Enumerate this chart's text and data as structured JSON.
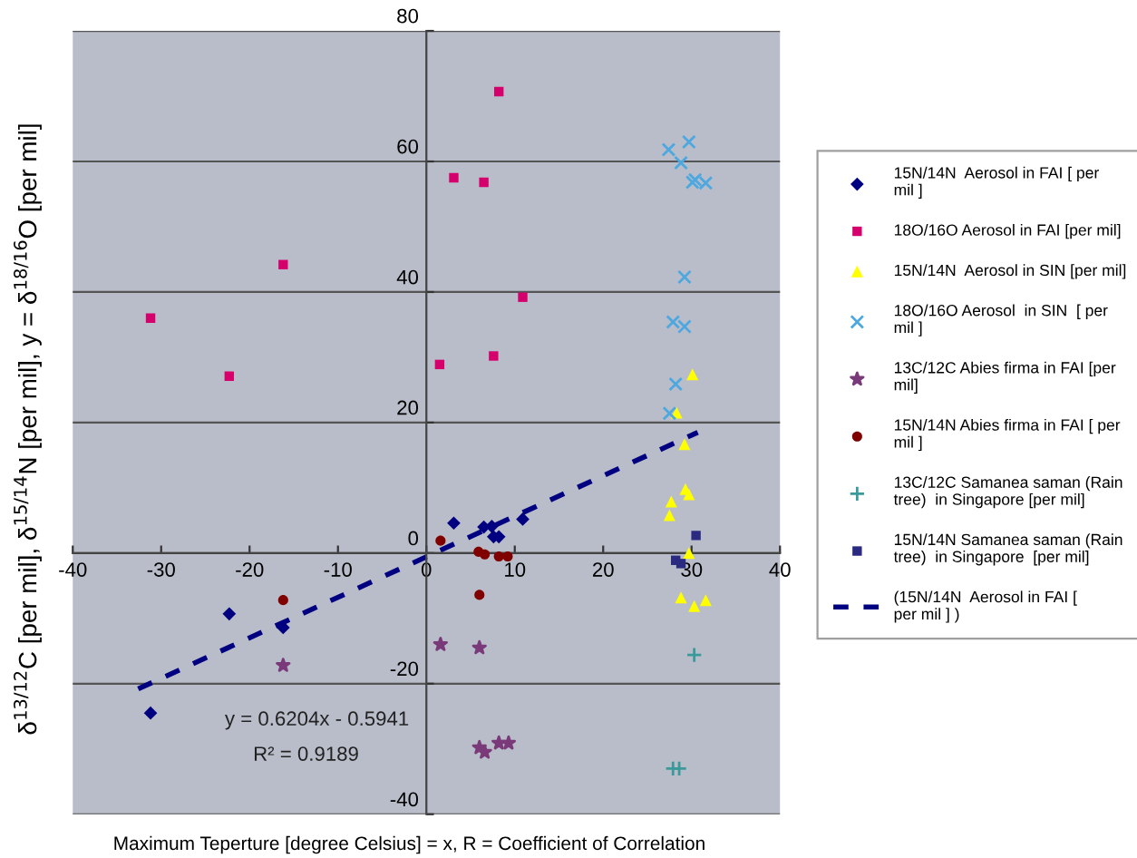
{
  "chart_data": {
    "type": "scatter",
    "xlabel": "Maximum Teperture [degree Celsius] = x, R = Coefficient of Correlation",
    "ylabel": "δ$^{13/12}$C [per mil], δ$^{15/14}$N [per mil], y = δ$^{18/16}$O [per mil]",
    "xlim": [
      -40,
      40
    ],
    "xticks": [
      -40,
      -30,
      -20,
      -10,
      0,
      10,
      20,
      30,
      40
    ],
    "ylim": [
      -40,
      80
    ],
    "yticks": [
      -40,
      -20,
      0,
      20,
      40,
      60,
      80
    ],
    "grid": "y",
    "legend": "right",
    "annotations": [
      "y = 0.6204x - 0.5941",
      "R² = 0.9189"
    ],
    "series": [
      {
        "name": "15N/14N  Aerosol in FAI [ per\nmil ]",
        "color": "#000080",
        "marker": "diamond",
        "x": [
          -31.2,
          -22.3,
          -16.2,
          3.1,
          6.5,
          7.4,
          7.6,
          8.2,
          10.9
        ],
        "values": [
          -24.5,
          -9.3,
          -11.4,
          4.6,
          4.0,
          4.1,
          2.5,
          2.5,
          5.2
        ]
      },
      {
        "name": "18O/16O Aerosol in FAI [per mil]",
        "color": "#d6006c",
        "marker": "square",
        "x": [
          -31.2,
          -22.3,
          -16.2,
          8.2,
          3.1,
          6.5,
          10.9,
          7.6,
          1.5
        ],
        "values": [
          36.0,
          27.1,
          44.2,
          70.7,
          57.5,
          56.8,
          39.2,
          30.2,
          28.9
        ]
      },
      {
        "name": "15N/14N  Aerosol in SIN [per mil]",
        "color": "#ffff00",
        "marker": "triangle",
        "x": [
          30.1,
          28.3,
          29.2,
          29.3,
          29.7,
          27.7,
          27.5,
          29.7,
          28.8,
          30.3,
          31.6
        ],
        "values": [
          27.4,
          21.5,
          16.7,
          9.8,
          9.0,
          7.9,
          5.8,
          0.0,
          -6.8,
          -8.1,
          -7.2
        ]
      },
      {
        "name": "18O/16O Aerosol  in SIN  [ per\nmil ]",
        "color": "#4ea8e0",
        "marker": "cross",
        "x": [
          27.4,
          29.7,
          28.8,
          30.1,
          30.4,
          31.6,
          29.2,
          27.9,
          29.2,
          28.2,
          27.5
        ],
        "values": [
          61.8,
          63.0,
          59.8,
          56.8,
          57.2,
          56.7,
          42.3,
          35.4,
          34.7,
          25.9,
          21.4
        ]
      },
      {
        "name": "13C/12C Abies firma in FAI [per\nmil]",
        "color": "#7a3a7a",
        "marker": "star",
        "x": [
          -16.2,
          1.6,
          6.0,
          6.0,
          6.6,
          8.2,
          9.3
        ],
        "values": [
          -17.2,
          -14.0,
          -14.5,
          -29.8,
          -30.5,
          -29.1,
          -29.1
        ]
      },
      {
        "name": "15N/14N Abies firma in FAI [ per\nmil ]",
        "color": "#800000",
        "marker": "circle",
        "x": [
          -16.2,
          1.6,
          5.9,
          6.6,
          8.2,
          9.2,
          6.0
        ],
        "values": [
          -7.2,
          1.9,
          0.2,
          -0.2,
          -0.5,
          -0.5,
          -6.4
        ]
      },
      {
        "name": "13C/12C Samanea saman (Rain\ntree)  in Singapore [per mil]",
        "color": "#3a9a9a",
        "marker": "plus",
        "x": [
          30.3,
          27.9,
          28.6
        ],
        "values": [
          -15.6,
          -33.0,
          -33.0
        ]
      },
      {
        "name": "15N/14N Samanea saman (Rain\ntree)  in Singapore  [per mil]",
        "color": "#2a2a80",
        "marker": "square",
        "x": [
          30.5,
          28.2,
          28.8
        ],
        "values": [
          2.7,
          -1.1,
          -1.6
        ]
      },
      {
        "name": "(15N/14N  Aerosol in FAI [\nper mil ] )",
        "type": "line",
        "line_style": "dashed",
        "color": "#000080",
        "marker": "none",
        "x": [
          -32.6,
          30.7
        ],
        "values": [
          -20.8,
          18.5
        ]
      }
    ]
  }
}
